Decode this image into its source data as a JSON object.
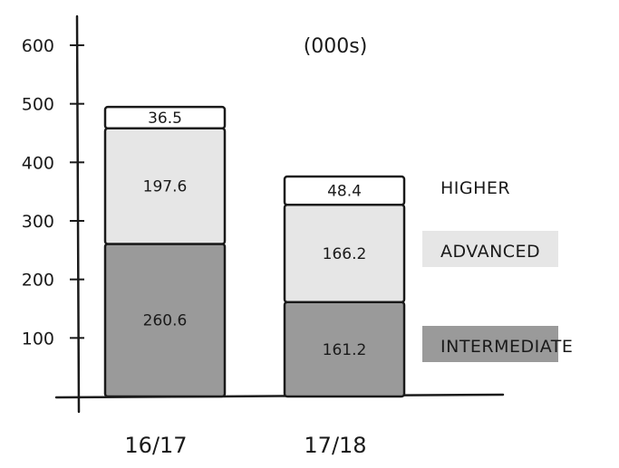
{
  "chart_data": {
    "type": "bar",
    "stacked": true,
    "unit_note": "(000s)",
    "categories": [
      "16/17",
      "17/18"
    ],
    "series": [
      {
        "name": "INTERMEDIATE",
        "values": [
          260.6,
          161.2
        ],
        "labels": [
          "260.6",
          "161.2"
        ],
        "color": "#9a9a9a"
      },
      {
        "name": "ADVANCED",
        "values": [
          197.6,
          166.2
        ],
        "labels": [
          "197.6",
          "166.2"
        ],
        "color": "#e6e6e6"
      },
      {
        "name": "HIGHER",
        "values": [
          36.5,
          48.4
        ],
        "labels": [
          "36.5",
          "48.4"
        ],
        "color": "#ffffff"
      }
    ],
    "y_ticks": [
      "100",
      "200",
      "300",
      "400",
      "500",
      "600"
    ],
    "ylim": [
      0,
      600
    ],
    "grid": false,
    "legend_position": "right",
    "title": "",
    "xlabel": "",
    "ylabel": ""
  }
}
